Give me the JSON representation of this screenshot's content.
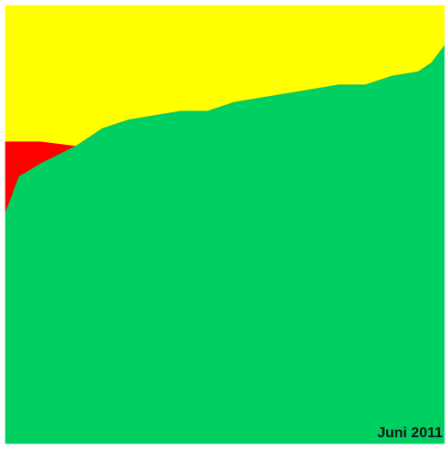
{
  "chart_data": {
    "type": "area",
    "stacked": true,
    "normalized": true,
    "title": "",
    "xlabel": "",
    "ylabel": "",
    "annotation": "Juni 2011",
    "grid": false,
    "legend": "none",
    "x": [
      0,
      0.03,
      0.08,
      0.16,
      0.22,
      0.28,
      0.34,
      0.4,
      0.46,
      0.52,
      0.58,
      0.64,
      0.7,
      0.76,
      0.82,
      0.88,
      0.94,
      0.97,
      1.0
    ],
    "series": [
      {
        "color": "#00cf61",
        "values": [
          0.53,
          0.61,
          0.64,
          0.68,
          0.72,
          0.74,
          0.75,
          0.76,
          0.76,
          0.78,
          0.79,
          0.8,
          0.81,
          0.82,
          0.82,
          0.84,
          0.85,
          0.87,
          0.91
        ]
      },
      {
        "color": "#ff0000",
        "values": [
          0.16,
          0.08,
          0.05,
          0.0,
          0.0,
          0.0,
          0.0,
          0.0,
          0.0,
          0.0,
          0.0,
          0.0,
          0.0,
          0.0,
          0.0,
          0.0,
          0.0,
          0.0,
          0.0
        ]
      },
      {
        "color": "#ffff00",
        "values": [
          0.31,
          0.31,
          0.31,
          0.32,
          0.28,
          0.26,
          0.25,
          0.24,
          0.24,
          0.22,
          0.21,
          0.2,
          0.19,
          0.18,
          0.18,
          0.16,
          0.15,
          0.13,
          0.09
        ]
      }
    ],
    "ylim": [
      0,
      1
    ]
  },
  "colors": {
    "background": "#ffffff",
    "text": "#111111"
  }
}
